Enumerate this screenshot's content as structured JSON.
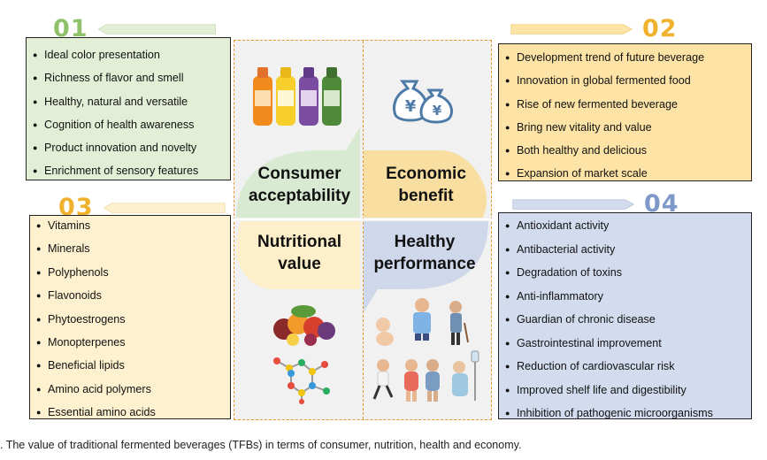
{
  "headers": {
    "h01": "01",
    "h02": "02",
    "h03": "03",
    "h04": "04"
  },
  "box1": {
    "items": [
      "Ideal color presentation",
      "Richness of flavor and smell",
      "Healthy, natural and versatile",
      "Cognition of health awareness",
      "Product innovation and novelty",
      "Enrichment of sensory  features"
    ]
  },
  "box2": {
    "items": [
      "Development trend of future beverage",
      "Innovation in global fermented food",
      "Rise of new fermented beverage",
      "Bring new vitality and value",
      "Both healthy and delicious",
      "Expansion of market scale"
    ]
  },
  "box3": {
    "items": [
      "Vitamins",
      "Minerals",
      "Polyphenols",
      "Flavonoids",
      "Phytoestrogens",
      "Monopterpenes",
      "Beneficial lipids",
      "Amino acid polymers",
      "Essential amino acids"
    ]
  },
  "box4": {
    "items": [
      "Antioxidant activity",
      "Antibacterial activity",
      "Degradation of toxins",
      "Anti-inflammatory",
      "Guardian of chronic disease",
      "Gastrointestinal improvement",
      "Reduction of cardiovascular risk",
      "Improved shelf life and digestibility",
      "Inhibition of pathogenic microorganisms"
    ]
  },
  "quadrants": {
    "q1": "Consumer acceptability",
    "q2": "Economic benefit",
    "q3": "Nutritional value",
    "q4": "Healthy performance"
  },
  "caption": ". The value of traditional fermented beverages (TFBs) in terms of consumer, nutrition, health and economy.",
  "colors": {
    "green": "#d9ead3",
    "yellow": "#fde4a6",
    "light_yellow": "#fdf1cf",
    "blue": "#d3dcee",
    "dashed_border": "#e39a35",
    "icon_blue": "#4e7aa8"
  },
  "icons": [
    "beverage-bottles-icon",
    "money-bags-icon",
    "fruit-pile-icon",
    "molecule-icon",
    "people-group-icon"
  ]
}
